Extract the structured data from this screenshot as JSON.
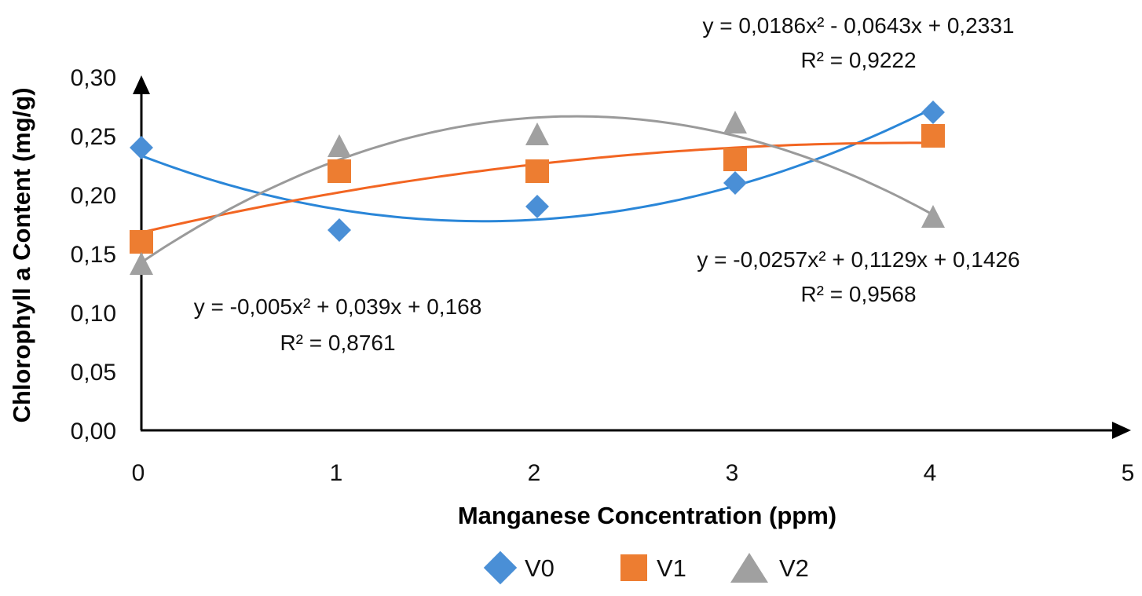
{
  "chart_data": {
    "type": "scatter",
    "title": "",
    "xlabel": "Manganese Concentration (ppm)",
    "ylabel": "Chlorophyll a Content (mg/g)",
    "xlim": [
      0,
      5
    ],
    "ylim": [
      0,
      0.3
    ],
    "x_ticks": [
      "0",
      "1",
      "2",
      "3",
      "4",
      "5"
    ],
    "y_ticks": [
      "0,00",
      "0,05",
      "0,10",
      "0,15",
      "0,20",
      "0,25",
      "0,30"
    ],
    "grid": false,
    "legend_position": "bottom",
    "x": [
      0,
      1,
      2,
      3,
      4
    ],
    "series": [
      {
        "name": "V0",
        "marker": "diamond",
        "color": "#4a8fd6",
        "line_color": "#2a86d8",
        "values": [
          0.24,
          0.17,
          0.19,
          0.21,
          0.27
        ],
        "trendline": {
          "type": "polynomial-2",
          "coefficients": [
            0.0186,
            -0.0643,
            0.2331
          ],
          "equation": "y = 0,0186x² - 0,0643x + 0,2331",
          "r2": "R² = 0,9222"
        }
      },
      {
        "name": "V1",
        "marker": "square",
        "color": "#ed7d31",
        "line_color": "#f26522",
        "values": [
          0.16,
          0.22,
          0.22,
          0.23,
          0.25
        ],
        "trendline": {
          "type": "polynomial-2",
          "coefficients": [
            -0.005,
            0.039,
            0.168
          ],
          "equation": "y = -0,005x² + 0,039x + 0,168",
          "r2": "R² = 0,8761"
        }
      },
      {
        "name": "V2",
        "marker": "triangle",
        "color": "#a0a0a0",
        "line_color": "#9a9a9a",
        "values": [
          0.14,
          0.24,
          0.25,
          0.26,
          0.18
        ],
        "trendline": {
          "type": "polynomial-2",
          "coefficients": [
            -0.0257,
            0.1129,
            0.1426
          ],
          "equation": "y = -0,0257x² + 0,1129x + 0,1426",
          "r2": "R² = 0,9568"
        }
      }
    ]
  }
}
